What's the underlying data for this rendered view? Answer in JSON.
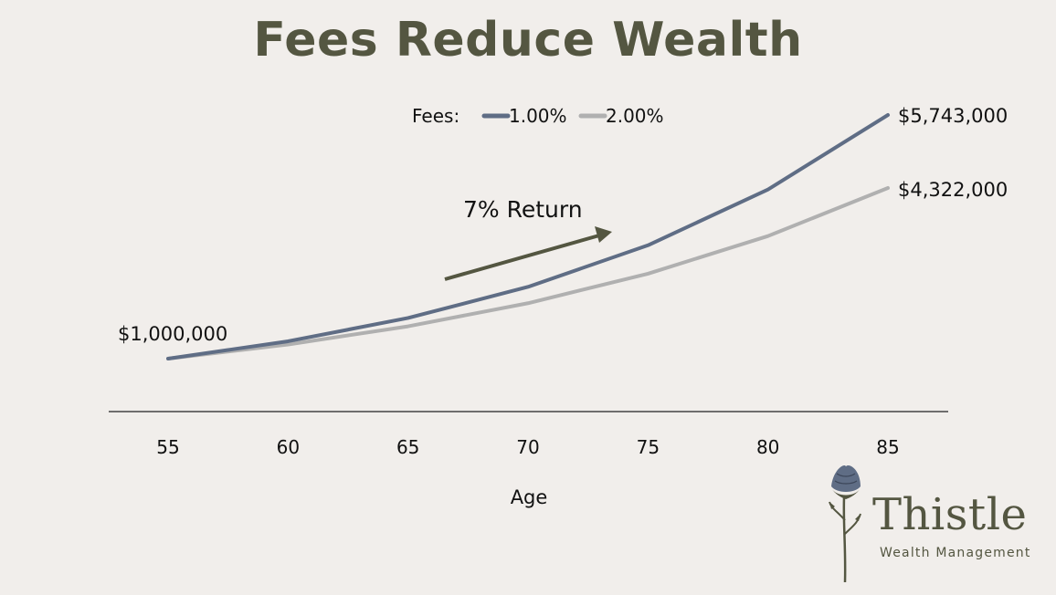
{
  "chart_data": {
    "type": "line",
    "title": "Fees Reduce Wealth",
    "xlabel": "Age",
    "ylabel": "",
    "categories": [
      "55",
      "60",
      "65",
      "70",
      "75",
      "80",
      "85"
    ],
    "x": [
      55,
      60,
      65,
      70,
      75,
      80,
      85
    ],
    "ylim": [
      0,
      6000000
    ],
    "series": [
      {
        "name": "1.00%",
        "color": "#5f6d85",
        "values": [
          1000000,
          1338000,
          1791000,
          2397000,
          3207000,
          4292000,
          5743000
        ]
      },
      {
        "name": "2.00%",
        "color": "#b0b0b0",
        "values": [
          1000000,
          1276000,
          1629000,
          2079000,
          2653000,
          3386000,
          4322000
        ]
      }
    ],
    "legend": {
      "title": "Fees:",
      "placement": "top"
    },
    "data_labels": {
      "start": "$1,000,000",
      "end_1": "$5,743,000",
      "end_2": "$4,322,000"
    },
    "annotation": {
      "text": "7% Return",
      "arrow_color": "#545641"
    },
    "grid": false
  },
  "logo": {
    "name": "Thistle",
    "subtitle": "Wealth Management",
    "icon": "thistle-flower-icon"
  }
}
